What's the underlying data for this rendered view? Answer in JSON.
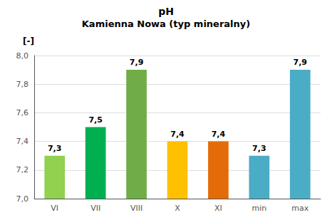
{
  "chart_data": {
    "type": "bar",
    "title": "pH",
    "subtitle": "Kamienna Nowa (typ mineralny)",
    "ylabel": "[-]",
    "categories": [
      "VI",
      "VII",
      "VIII",
      "X",
      "XI",
      "min",
      "max"
    ],
    "values": [
      7.3,
      7.5,
      7.9,
      7.4,
      7.4,
      7.3,
      7.9
    ],
    "value_labels": [
      "7,3",
      "7,5",
      "7,9",
      "7,4",
      "7,4",
      "7,3",
      "7,9"
    ],
    "colors": [
      "#92d050",
      "#00b050",
      "#70ad47",
      "#ffc000",
      "#e36c09",
      "#4bacc6",
      "#4bacc6"
    ],
    "data_labels": true,
    "ylim": [
      7.0,
      8.0
    ],
    "yticks": [
      {
        "value": 7.0,
        "label": "7,0"
      },
      {
        "value": 7.2,
        "label": "7,2"
      },
      {
        "value": 7.4,
        "label": "7,4"
      },
      {
        "value": 7.6,
        "label": "7,6"
      },
      {
        "value": 7.8,
        "label": "7,8"
      },
      {
        "value": 8.0,
        "label": "8,0"
      }
    ],
    "grid": true
  }
}
